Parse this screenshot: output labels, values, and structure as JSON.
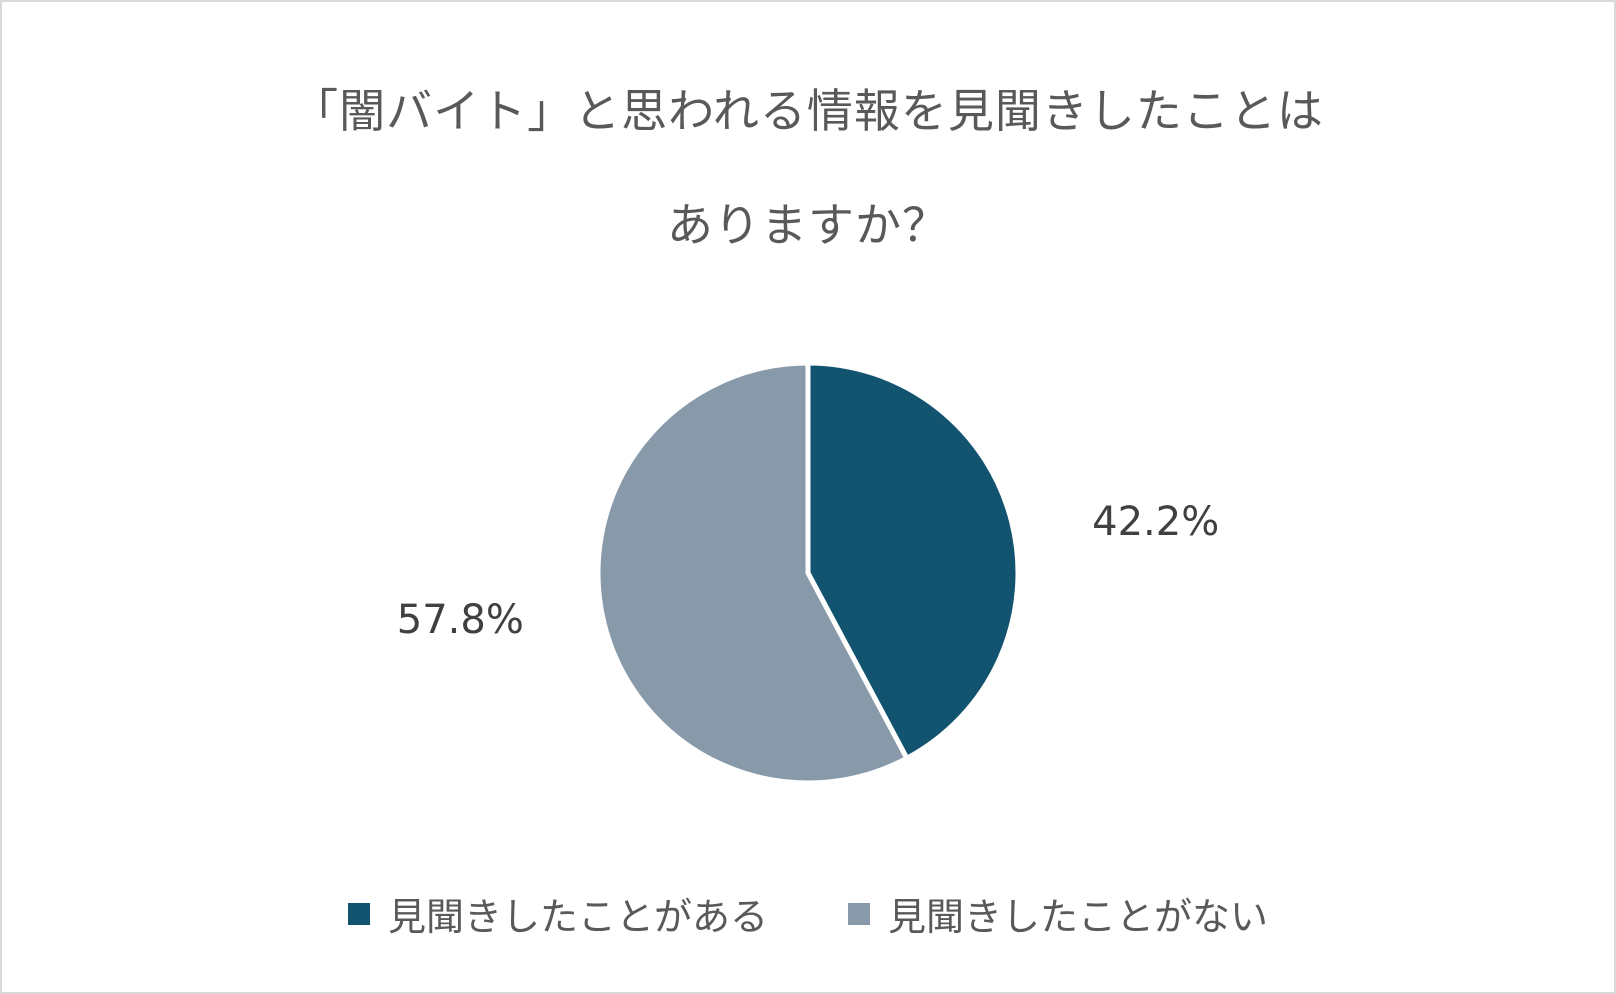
{
  "chart_data": {
    "type": "pie",
    "title_lines": [
      "「闇バイト」と思われる情報を見聞きしたことは",
      "ありますか？"
    ],
    "slices": [
      {
        "name": "見聞きしたことがある",
        "value": 42.2,
        "label": "42.2%",
        "color": "#12536f"
      },
      {
        "name": "見聞きしたことがない",
        "value": 57.8,
        "label": "57.8%",
        "color": "#8899aa"
      }
    ],
    "legend": {
      "position": "bottom"
    }
  }
}
